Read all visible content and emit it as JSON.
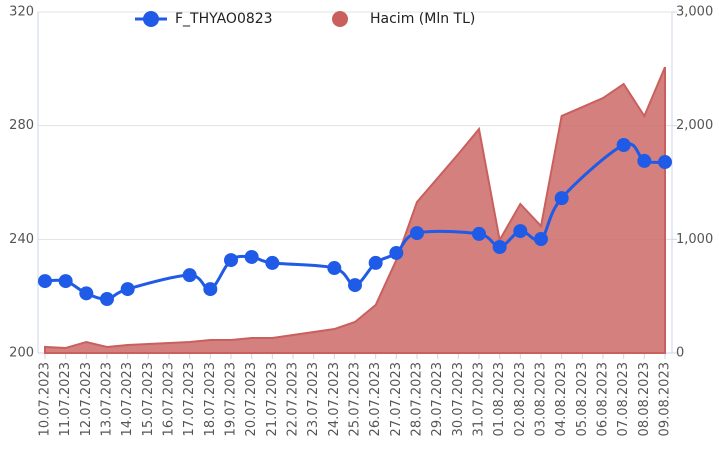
{
  "chart_data": {
    "type": "combo",
    "categories": [
      "10.07.2023",
      "11.07.2023",
      "12.07.2023",
      "13.07.2023",
      "14.07.2023",
      "15.07.2023",
      "16.07.2023",
      "17.07.2023",
      "18.07.2023",
      "19.07.2023",
      "20.07.2023",
      "21.07.2023",
      "22.07.2023",
      "23.07.2023",
      "24.07.2023",
      "25.07.2023",
      "26.07.2023",
      "27.07.2023",
      "28.07.2023",
      "29.07.2023",
      "30.07.2023",
      "31.07.2023",
      "01.08.2023",
      "02.08.2023",
      "03.08.2023",
      "04.08.2023",
      "05.08.2023",
      "06.08.2023",
      "07.08.2023",
      "08.08.2023",
      "09.08.2023"
    ],
    "series": [
      {
        "name": "F_THYAO0823",
        "type": "line",
        "axis": "y",
        "color": "#1f5be6",
        "values": [
          225.3,
          225.3,
          221,
          219,
          222.5,
          null,
          null,
          227.4,
          222.5,
          232.7,
          233.8,
          231.7,
          null,
          null,
          229.9,
          223.9,
          231.7,
          235.2,
          242.2,
          null,
          null,
          241.9,
          237.3,
          242.9,
          240.1,
          254.5,
          null,
          null,
          273.2,
          267.6,
          267.2
        ]
      },
      {
        "name": "Hacim (Mln TL)",
        "type": "area",
        "axis": "y2",
        "color": "#c9605e",
        "values": [
          53,
          44,
          97,
          53,
          70,
          79,
          88,
          97,
          114,
          114,
          132,
          132,
          158,
          185,
          211,
          273,
          422,
          818,
          1328,
          1539,
          1751,
          1970,
          994,
          1311,
          1117,
          2085,
          2164,
          2243,
          2366,
          2085,
          2515
        ]
      }
    ],
    "connect_gaps": true,
    "ylim": [
      200,
      320
    ],
    "yticks": [
      200,
      240,
      280,
      320
    ],
    "y2lim": [
      0,
      3000
    ],
    "y2ticks": [
      {
        "value": 0,
        "label": "0"
      },
      {
        "value": 1000,
        "label": "1,000"
      },
      {
        "value": 2000,
        "label": "2,000"
      },
      {
        "value": 3000,
        "label": "3,000"
      }
    ],
    "grid": true,
    "legend": "top"
  }
}
